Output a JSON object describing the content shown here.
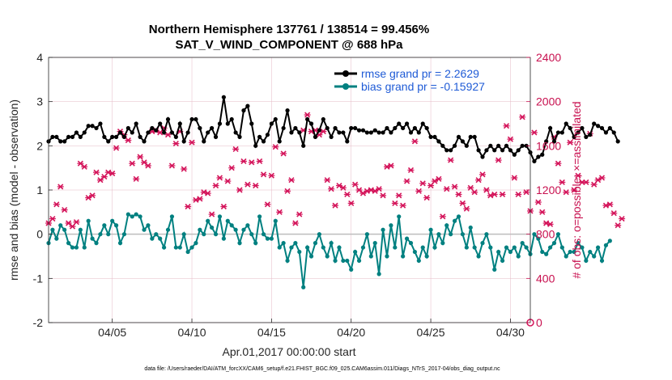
{
  "chart_data": {
    "type": "line",
    "title_line1": "Northern Hemisphere 137761 / 138514 = 99.456%",
    "title_line2": "SAT_V_WIND_COMPONENT @ 688 hPa",
    "xlabel": "Apr.01,2017 00:00:00 start",
    "ylabel": "rmse and bias (model - observation)",
    "ylabel_right": "# of obs: o=possible; ×=assimilated",
    "footer": "data file: /Users/raeder/DAI/ATM_forcXX/CAM6_setup/f.e21.FHIST_BGC.f09_025.CAM6assim.011/Diags_NTrS_2017-04/obs_diag_output.nc",
    "xlim": [
      1.0,
      31.25
    ],
    "ylim": [
      -2,
      4
    ],
    "ylim_right": [
      0,
      2400
    ],
    "x_ticks": [
      5,
      10,
      15,
      20,
      25,
      30
    ],
    "x_tick_labels": [
      "04/05",
      "04/10",
      "04/15",
      "04/20",
      "04/25",
      "04/30"
    ],
    "y_ticks": [
      -2,
      -1,
      0,
      1,
      2,
      3,
      4
    ],
    "y_tick_labels": [
      "-2",
      "-1",
      "0",
      "1",
      "2",
      "3",
      "4"
    ],
    "y_ticks_right": [
      0,
      400,
      800,
      1200,
      1600,
      2000,
      2400
    ],
    "y_tick_labels_right": [
      "0",
      "400",
      "800",
      "1200",
      "1600",
      "2000",
      "2400"
    ],
    "x_start": 1.0,
    "x_step": 0.25,
    "series": [
      {
        "name": "rmse grand pr = 2.2629",
        "color": "#000000",
        "values": [
          2.1,
          2.2,
          2.2,
          2.1,
          2.1,
          2.2,
          2.2,
          2.3,
          2.2,
          2.3,
          2.45,
          2.45,
          2.4,
          2.5,
          2.2,
          2.1,
          2.2,
          2.2,
          2.3,
          2.2,
          2.4,
          2.3,
          2.5,
          2.2,
          2.1,
          2.3,
          2.4,
          2.35,
          2.5,
          2.3,
          2.6,
          2.3,
          2.2,
          2.5,
          2.1,
          2.3,
          2.6,
          2.6,
          2.4,
          2.1,
          2.3,
          2.4,
          2.2,
          2.5,
          3.1,
          2.5,
          2.6,
          2.3,
          2.2,
          2.8,
          2.9,
          2.5,
          2.0,
          2.2,
          2.1,
          2.25,
          2.5,
          2.6,
          2.1,
          2.4,
          2.8,
          2.3,
          2.4,
          2.3,
          2.0,
          2.6,
          2.5,
          2.2,
          2.35,
          2.6,
          2.4,
          2.2,
          2.4,
          2.3,
          2.3,
          2.1,
          2.4,
          2.4,
          2.35,
          2.35,
          2.3,
          2.3,
          2.35,
          2.3,
          2.3,
          2.4,
          2.3,
          2.4,
          2.5,
          2.4,
          2.5,
          2.3,
          2.4,
          2.3,
          2.5,
          2.4,
          2.2,
          2.2,
          2.1,
          2.0,
          1.9,
          1.9,
          2.0,
          2.2,
          2.1,
          2.0,
          2.2,
          2.2,
          1.9,
          1.75,
          1.9,
          2.0,
          1.9,
          2.0,
          1.9,
          2.0,
          1.9,
          1.8,
          1.9,
          2.0,
          2.0,
          1.85,
          1.65,
          1.75,
          1.8,
          2.1,
          2.4,
          2.1,
          2.3,
          2.3,
          2.5,
          2.4,
          2.2,
          2.3,
          2.4,
          2.2,
          2.25,
          2.5,
          2.45,
          2.4,
          2.3,
          2.4,
          2.3,
          2.1
        ]
      },
      {
        "name": "bias grand pr = -0.15927",
        "color": "#008080",
        "values": [
          -0.2,
          0.1,
          -0.1,
          0.2,
          0.1,
          -0.2,
          -0.3,
          -0.3,
          0.1,
          -0.3,
          0.3,
          -0.1,
          -0.2,
          0.0,
          0.2,
          0.0,
          0.3,
          0.2,
          -0.2,
          0.0,
          0.45,
          0.4,
          0.45,
          0.4,
          0.1,
          0.2,
          -0.1,
          0.0,
          -0.1,
          -0.3,
          0.1,
          0.4,
          -0.3,
          -0.3,
          0.0,
          -0.4,
          -0.3,
          -0.2,
          0.1,
          0.0,
          0.3,
          0.15,
          0.0,
          0.4,
          -0.1,
          0.3,
          0.2,
          0.1,
          -0.2,
          0.1,
          0.2,
          0.0,
          -0.2,
          0.4,
          0.0,
          -0.1,
          -0.1,
          0.3,
          -0.3,
          -0.2,
          -0.6,
          -0.3,
          -0.2,
          -0.4,
          -1.2,
          -0.3,
          -0.5,
          -0.2,
          0.0,
          -0.3,
          -0.5,
          -0.2,
          -0.6,
          -0.3,
          -0.6,
          -0.6,
          -0.8,
          -0.4,
          -0.6,
          -0.3,
          0.0,
          -0.5,
          -0.2,
          -0.9,
          0.1,
          -0.5,
          0.2,
          -0.3,
          0.4,
          -0.5,
          -0.1,
          -0.2,
          -0.4,
          -0.6,
          -0.3,
          -0.5,
          0.1,
          -0.3,
          0.0,
          -0.2,
          0.2,
          0.0,
          0.3,
          0.4,
          0.0,
          -0.3,
          0.15,
          -0.3,
          -0.5,
          -0.2,
          0.0,
          -0.3,
          -0.8,
          -0.4,
          -0.6,
          -0.3,
          -0.4,
          -0.3,
          -0.5,
          -0.2,
          -0.3,
          -0.45,
          0.0,
          -0.1,
          -0.4,
          -0.45,
          -0.3,
          -0.2,
          0.0,
          -0.3,
          -0.5,
          -0.4,
          -0.4,
          -0.2,
          -0.3,
          -0.6,
          -0.4,
          -0.5,
          -0.3,
          -0.6,
          -0.25,
          -0.15
        ]
      }
    ],
    "assimilated_count": {
      "name": "# assimilated",
      "color": "#d4145a",
      "values": [
        900,
        940,
        1070,
        1230,
        1020,
        900,
        870,
        910,
        1440,
        1410,
        1130,
        1150,
        1360,
        1290,
        1320,
        1360,
        1350,
        1580,
        1730,
        1700,
        1650,
        1440,
        1300,
        1500,
        1450,
        1420,
        1730,
        1740,
        1720,
        1760,
        1700,
        1420,
        1620,
        1730,
        1390,
        1050,
        1630,
        1110,
        1120,
        1180,
        1170,
        980,
        1240,
        1310,
        1050,
        1280,
        1400,
        1570,
        1200,
        1460,
        1250,
        1450,
        1240,
        1460,
        1340,
        1070,
        1330,
        1590,
        1000,
        1530,
        1190,
        1290,
        900,
        980,
        1740,
        1880,
        1730,
        1740,
        1700,
        1730,
        1290,
        1210,
        1060,
        1240,
        1220,
        1160,
        1080,
        1250,
        1200,
        1170,
        1190,
        1200,
        1190,
        1210,
        1150,
        1410,
        1420,
        1080,
        1150,
        1060,
        1280,
        1380,
        1640,
        1190,
        1260,
        1130,
        1240,
        1280,
        1300,
        960,
        1210,
        1470,
        1230,
        1160,
        1080,
        1030,
        1220,
        1180,
        1290,
        1340,
        1200,
        1150,
        1160,
        1470,
        1160,
        1780,
        1660,
        1310,
        1160,
        1860,
        1180,
        1010,
        1720,
        1090,
        1000,
        900,
        890,
        1680,
        1440,
        1270,
        1180,
        1630,
        1200,
        1330,
        1270,
        1270,
        1710,
        1250,
        1290,
        1310,
        1060,
        1070,
        990,
        880,
        940
      ]
    },
    "legend_position": "top-right"
  }
}
